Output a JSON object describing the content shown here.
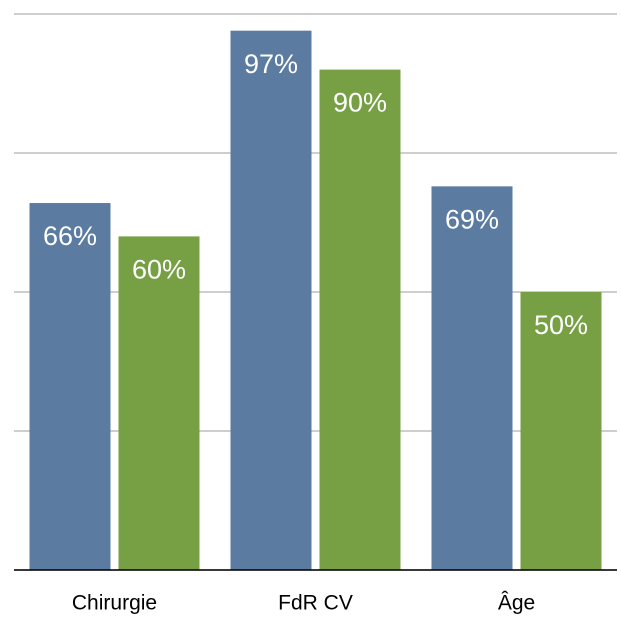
{
  "chart_data": {
    "type": "bar",
    "categories": [
      "Chirurgie",
      "FdR CV",
      "Âge"
    ],
    "series": [
      {
        "color": "#5b7ba1",
        "values": [
          66,
          97,
          69
        ],
        "value_labels": [
          "66%",
          "97%",
          "69%"
        ]
      },
      {
        "color": "#77a045",
        "values": [
          60,
          90,
          50
        ],
        "value_labels": [
          "60%",
          "90%",
          "50%"
        ]
      }
    ],
    "ylim": [
      0,
      100
    ],
    "yticks": [
      0,
      25,
      50,
      75,
      100
    ],
    "grid": true
  }
}
